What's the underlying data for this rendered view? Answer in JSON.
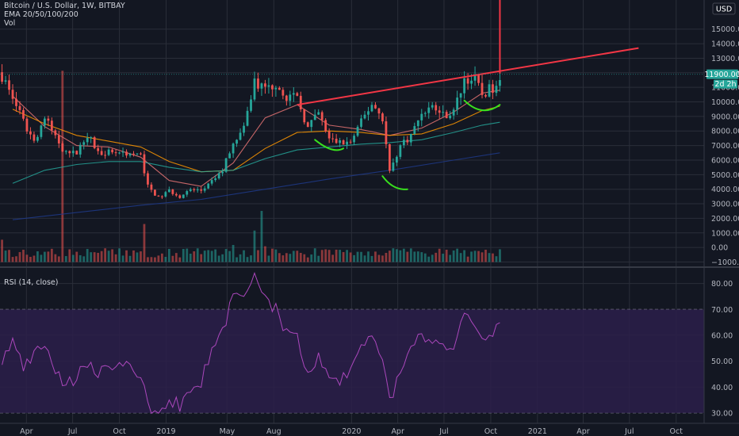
{
  "header": {
    "symbol_line": "Bitcoin / U.S. Dollar, 1W, BITBAY",
    "ema_line": "EMA 20/50/100/200",
    "vol_line": "Vol",
    "currency": "USD"
  },
  "rsi_legend": "RSI (14, close)",
  "price_tag": "11900.00",
  "countdown_tag": "2d 2h",
  "colors": {
    "background": "#131722",
    "grid": "#2a2e39",
    "up": "#26a69a",
    "down": "#ef5350",
    "ema20": "#e57373",
    "ema50": "#ff9800",
    "ema100": "#26a69a",
    "ema200": "#1e3a8a",
    "rsi_line": "#ab47bc",
    "rsi_band": "#2b1e4a",
    "trend_annotation": "#f23645",
    "curve_annotation": "#39e01e"
  },
  "chart_data": [
    {
      "type": "candlestick",
      "panel": "price",
      "title": "Bitcoin / U.S. Dollar, 1W, BITBAY",
      "y_ticks": [
        -1000,
        0,
        1000,
        2000,
        3000,
        4000,
        5000,
        6000,
        7000,
        8000,
        9000,
        10000,
        11000,
        12000,
        13000,
        14000,
        15000
      ],
      "y_tick_labels": [
        "−1000.00",
        "0.00",
        "1000.00",
        "2000.00",
        "3000.00",
        "4000.00",
        "5000.00",
        "6000.00",
        "7000.00",
        "8000.00",
        "9000.00",
        "10000.00",
        "11000.00",
        "12000.00",
        "13000.00",
        "14000.00",
        "15000.00"
      ],
      "ylim": [
        -1300,
        17000
      ],
      "x_ticks": [
        "2018-04-01",
        "2018-07-01",
        "2018-10-01",
        "2019-01-01",
        "2019-05-01",
        "2019-08-01",
        "2020-01-01",
        "2020-04-01",
        "2020-07-01",
        "2020-10-01",
        "2021-01-01",
        "2021-04-01",
        "2021-07-01",
        "2021-10-01"
      ],
      "x_tick_labels": [
        "Apr",
        "Jul",
        "Oct",
        "2019",
        "May",
        "Aug",
        "2020",
        "Apr",
        "Jul",
        "Oct",
        "2021",
        "Apr",
        "Jul",
        "Oct"
      ],
      "xlim": [
        "2018-02-08",
        "2021-11-25"
      ],
      "last_price": 11900.0,
      "price_trend": [
        [
          "2018-02-12",
          11800
        ],
        [
          "2018-03-05",
          10300
        ],
        [
          "2018-03-26",
          8600
        ],
        [
          "2018-04-16",
          7300
        ],
        [
          "2018-05-07",
          8900
        ],
        [
          "2018-05-28",
          7600
        ],
        [
          "2018-06-18",
          6400
        ],
        [
          "2018-07-09",
          6500
        ],
        [
          "2018-07-30",
          7800
        ],
        [
          "2018-08-20",
          6500
        ],
        [
          "2018-09-10",
          6600
        ],
        [
          "2018-10-01",
          6550
        ],
        [
          "2018-10-22",
          6450
        ],
        [
          "2018-11-12",
          6300
        ],
        [
          "2018-11-26",
          4200
        ],
        [
          "2018-12-17",
          3400
        ],
        [
          "2019-01-07",
          3900
        ],
        [
          "2019-01-28",
          3500
        ],
        [
          "2019-02-18",
          3950
        ],
        [
          "2019-03-11",
          3900
        ],
        [
          "2019-04-01",
          4500
        ],
        [
          "2019-04-22",
          5300
        ],
        [
          "2019-05-13",
          7300
        ],
        [
          "2019-06-03",
          8100
        ],
        [
          "2019-06-24",
          11500
        ],
        [
          "2019-07-15",
          10800
        ],
        [
          "2019-08-05",
          11300
        ],
        [
          "2019-08-26",
          10400
        ],
        [
          "2019-09-16",
          10200
        ],
        [
          "2019-10-07",
          8200
        ],
        [
          "2019-10-28",
          9200
        ],
        [
          "2019-11-18",
          7400
        ],
        [
          "2019-12-09",
          7200
        ],
        [
          "2019-12-30",
          7200
        ],
        [
          "2020-01-20",
          8600
        ],
        [
          "2020-02-10",
          9900
        ],
        [
          "2020-03-02",
          8900
        ],
        [
          "2020-03-16",
          5200
        ],
        [
          "2020-04-06",
          7000
        ],
        [
          "2020-04-27",
          7700
        ],
        [
          "2020-05-18",
          9300
        ],
        [
          "2020-06-08",
          9700
        ],
        [
          "2020-06-29",
          9100
        ],
        [
          "2020-07-20",
          9300
        ],
        [
          "2020-08-10",
          11600
        ],
        [
          "2020-08-31",
          11500
        ],
        [
          "2020-09-14",
          10500
        ],
        [
          "2020-10-05",
          11000
        ],
        [
          "2020-10-19",
          11900
        ]
      ],
      "rsi_trend": [
        [
          "2018-02-12",
          50
        ],
        [
          "2018-03-05",
          58
        ],
        [
          "2018-03-26",
          47
        ],
        [
          "2018-04-16",
          52
        ],
        [
          "2018-05-07",
          57
        ],
        [
          "2018-05-28",
          46
        ],
        [
          "2018-06-18",
          41
        ],
        [
          "2018-07-09",
          44
        ],
        [
          "2018-07-30",
          50
        ],
        [
          "2018-08-20",
          46
        ],
        [
          "2018-09-10",
          46
        ],
        [
          "2018-10-01",
          47
        ],
        [
          "2018-10-22",
          48
        ],
        [
          "2018-11-12",
          44
        ],
        [
          "2018-11-26",
          33
        ],
        [
          "2018-12-17",
          29
        ],
        [
          "2019-01-07",
          35
        ],
        [
          "2019-01-28",
          33
        ],
        [
          "2019-02-18",
          38
        ],
        [
          "2019-03-11",
          42
        ],
        [
          "2019-04-01",
          55
        ],
        [
          "2019-04-22",
          62
        ],
        [
          "2019-05-13",
          75
        ],
        [
          "2019-06-03",
          74
        ],
        [
          "2019-06-24",
          82
        ],
        [
          "2019-07-15",
          74
        ],
        [
          "2019-08-05",
          70
        ],
        [
          "2019-08-26",
          61
        ],
        [
          "2019-09-16",
          60
        ],
        [
          "2019-10-07",
          44
        ],
        [
          "2019-10-28",
          52
        ],
        [
          "2019-11-18",
          42
        ],
        [
          "2019-12-09",
          43
        ],
        [
          "2019-12-30",
          46
        ],
        [
          "2020-01-20",
          56
        ],
        [
          "2020-02-10",
          62
        ],
        [
          "2020-03-02",
          50
        ],
        [
          "2020-03-16",
          34
        ],
        [
          "2020-04-06",
          47
        ],
        [
          "2020-04-27",
          54
        ],
        [
          "2020-05-18",
          60
        ],
        [
          "2020-06-08",
          59
        ],
        [
          "2020-06-29",
          56
        ],
        [
          "2020-07-20",
          57
        ],
        [
          "2020-08-10",
          71
        ],
        [
          "2020-08-31",
          65
        ],
        [
          "2020-09-14",
          58
        ],
        [
          "2020-10-05",
          61
        ],
        [
          "2020-10-19",
          64
        ]
      ],
      "volume_spikes": [
        [
          "2018-02-12",
          1700
        ],
        [
          "2018-06-11",
          14600
        ],
        [
          "2018-11-19",
          2900
        ],
        [
          "2019-05-13",
          1300
        ],
        [
          "2019-06-24",
          2400
        ],
        [
          "2019-07-08",
          3900
        ],
        [
          "2019-07-15",
          1200
        ]
      ],
      "ema": {
        "EMA 20": [
          [
            "2018-03-05",
            10400
          ],
          [
            "2018-05-07",
            8300
          ],
          [
            "2018-07-09",
            7000
          ],
          [
            "2018-09-10",
            6900
          ],
          [
            "2018-11-12",
            6200
          ],
          [
            "2019-01-07",
            4600
          ],
          [
            "2019-03-11",
            4200
          ],
          [
            "2019-05-13",
            5800
          ],
          [
            "2019-07-15",
            8900
          ],
          [
            "2019-09-16",
            9800
          ],
          [
            "2019-11-18",
            8400
          ],
          [
            "2020-01-20",
            8100
          ],
          [
            "2020-03-16",
            7700
          ],
          [
            "2020-05-18",
            8200
          ],
          [
            "2020-07-20",
            9300
          ],
          [
            "2020-09-14",
            10600
          ],
          [
            "2020-10-19",
            10800
          ]
        ],
        "EMA 50": [
          [
            "2018-03-05",
            9500
          ],
          [
            "2018-05-07",
            8500
          ],
          [
            "2018-07-09",
            7700
          ],
          [
            "2018-09-10",
            7300
          ],
          [
            "2018-11-12",
            6900
          ],
          [
            "2019-01-07",
            5900
          ],
          [
            "2019-03-11",
            5200
          ],
          [
            "2019-05-13",
            5300
          ],
          [
            "2019-07-15",
            6800
          ],
          [
            "2019-09-16",
            7900
          ],
          [
            "2019-11-18",
            8000
          ],
          [
            "2020-01-20",
            7900
          ],
          [
            "2020-03-16",
            7700
          ],
          [
            "2020-05-18",
            7800
          ],
          [
            "2020-07-20",
            8500
          ],
          [
            "2020-09-14",
            9400
          ],
          [
            "2020-10-19",
            9700
          ]
        ],
        "EMA 100": [
          [
            "2018-03-05",
            4400
          ],
          [
            "2018-05-07",
            5300
          ],
          [
            "2018-07-09",
            5700
          ],
          [
            "2018-09-10",
            5900
          ],
          [
            "2018-11-12",
            5900
          ],
          [
            "2019-01-07",
            5500
          ],
          [
            "2019-03-11",
            5200
          ],
          [
            "2019-05-13",
            5300
          ],
          [
            "2019-07-15",
            6100
          ],
          [
            "2019-09-16",
            6700
          ],
          [
            "2019-11-18",
            6900
          ],
          [
            "2020-01-20",
            7100
          ],
          [
            "2020-03-16",
            7200
          ],
          [
            "2020-05-18",
            7400
          ],
          [
            "2020-07-20",
            7900
          ],
          [
            "2020-09-14",
            8400
          ],
          [
            "2020-10-19",
            8600
          ]
        ],
        "EMA 200": [
          [
            "2018-03-05",
            1900
          ],
          [
            "2018-07-09",
            2400
          ],
          [
            "2018-11-12",
            2900
          ],
          [
            "2019-03-11",
            3300
          ],
          [
            "2019-07-15",
            4000
          ],
          [
            "2019-11-18",
            4700
          ],
          [
            "2020-03-16",
            5300
          ],
          [
            "2020-07-20",
            6000
          ],
          [
            "2020-10-19",
            6500
          ]
        ]
      },
      "annotations": {
        "trend_line": [
          [
            "2019-09-16",
            9800
          ],
          [
            "2021-07-19",
            13700
          ]
        ],
        "vertical_spike": [
          [
            "2020-10-19",
            11950
          ],
          [
            "2020-10-19",
            17000
          ]
        ],
        "curves": [
          [
            [
              "2019-10-21",
              7400
            ],
            [
              "2019-11-25",
              6400
            ],
            [
              "2019-12-16",
              6800
            ]
          ],
          [
            [
              "2020-03-02",
              4900
            ],
            [
              "2020-03-23",
              3900
            ],
            [
              "2020-04-20",
              4000
            ]
          ],
          [
            [
              "2020-08-10",
              10100
            ],
            [
              "2020-09-14",
              8900
            ],
            [
              "2020-10-19",
              9800
            ]
          ]
        ]
      }
    },
    {
      "type": "line",
      "panel": "rsi",
      "title": "RSI (14, close)",
      "y_ticks": [
        30,
        40,
        50,
        60,
        70,
        80
      ],
      "y_tick_labels": [
        "30.00",
        "40.00",
        "50.00",
        "60.00",
        "70.00",
        "80.00"
      ],
      "ylim": [
        26,
        86
      ],
      "band": [
        30,
        70
      ]
    }
  ]
}
